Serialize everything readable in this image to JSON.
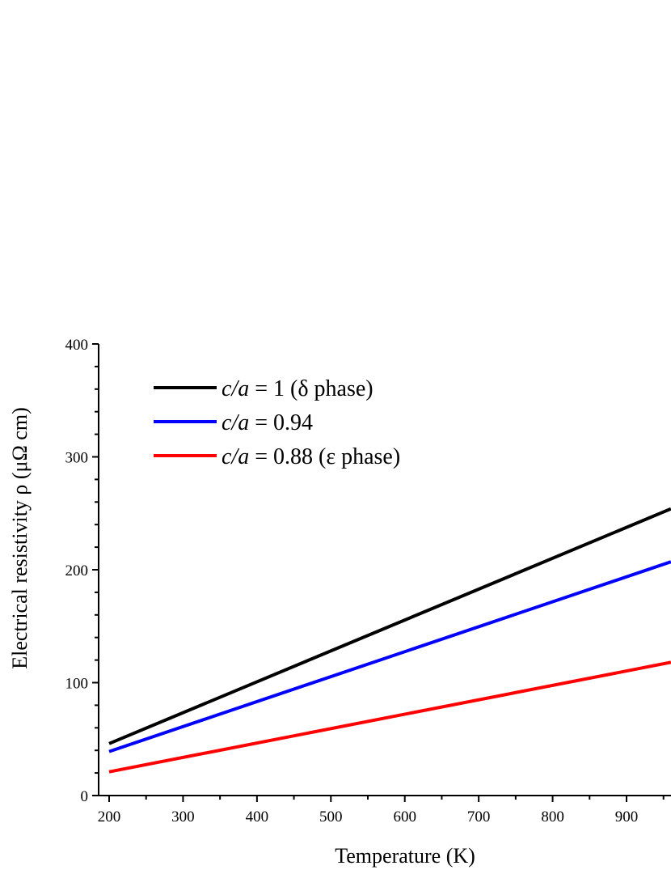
{
  "chart_data": {
    "type": "line",
    "title": "",
    "xlabel": "Temperature (K)",
    "ylabel": "Electrical resistivity ρ (μΩ cm)",
    "xlim": [
      185,
      960
    ],
    "ylim": [
      0,
      400
    ],
    "xticks": [
      200,
      300,
      400,
      500,
      600,
      700,
      800,
      900
    ],
    "yticks": [
      0,
      100,
      200,
      300,
      400
    ],
    "grid": false,
    "legend_position": "top-left",
    "series": [
      {
        "name": "c/a = 1 (δ phase)",
        "legend": {
          "italic": "c/a",
          "rest": " = 1 (δ phase)"
        },
        "color": "#000000",
        "x": [
          200,
          960
        ],
        "y": [
          46,
          254
        ]
      },
      {
        "name": "c/a = 0.94",
        "legend": {
          "italic": "c/a",
          "rest": " = 0.94"
        },
        "color": "#0000ff",
        "x": [
          200,
          960
        ],
        "y": [
          39,
          207
        ]
      },
      {
        "name": "c/a = 0.88 (ε phase)",
        "legend": {
          "italic": "c/a",
          "rest": " = 0.88 (ε phase)"
        },
        "color": "#ff0000",
        "x": [
          200,
          960
        ],
        "y": [
          21,
          118
        ]
      }
    ]
  }
}
